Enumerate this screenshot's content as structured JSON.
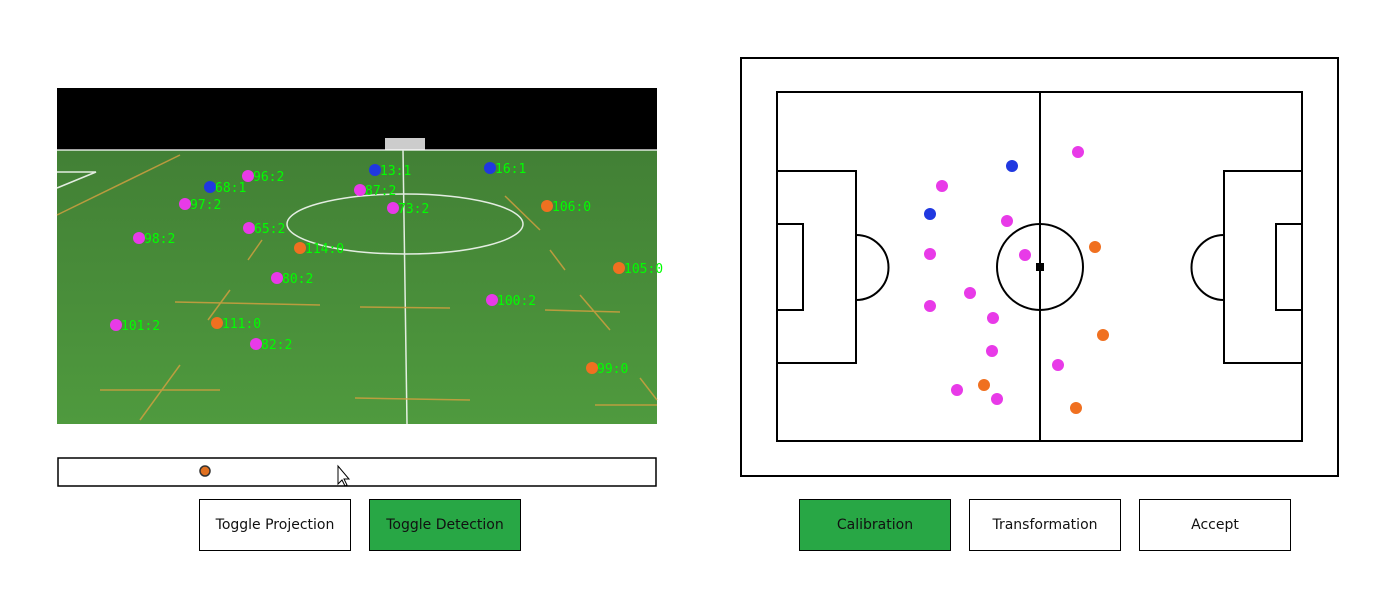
{
  "video": {
    "detections": [
      "68:1",
      "96:2",
      "13:1",
      "16:1",
      "97:2",
      "87:2",
      "73:2",
      "106:0",
      "98:2",
      "65:2",
      "114:0",
      "105:0",
      "80:2",
      "100:2",
      "101:2",
      "111:0",
      "82:2",
      "99:0"
    ]
  },
  "buttons": {
    "left": [
      "Toggle Projection",
      "Toggle Detection"
    ],
    "right": [
      "Calibration",
      "Transformation",
      "Accept"
    ]
  }
}
